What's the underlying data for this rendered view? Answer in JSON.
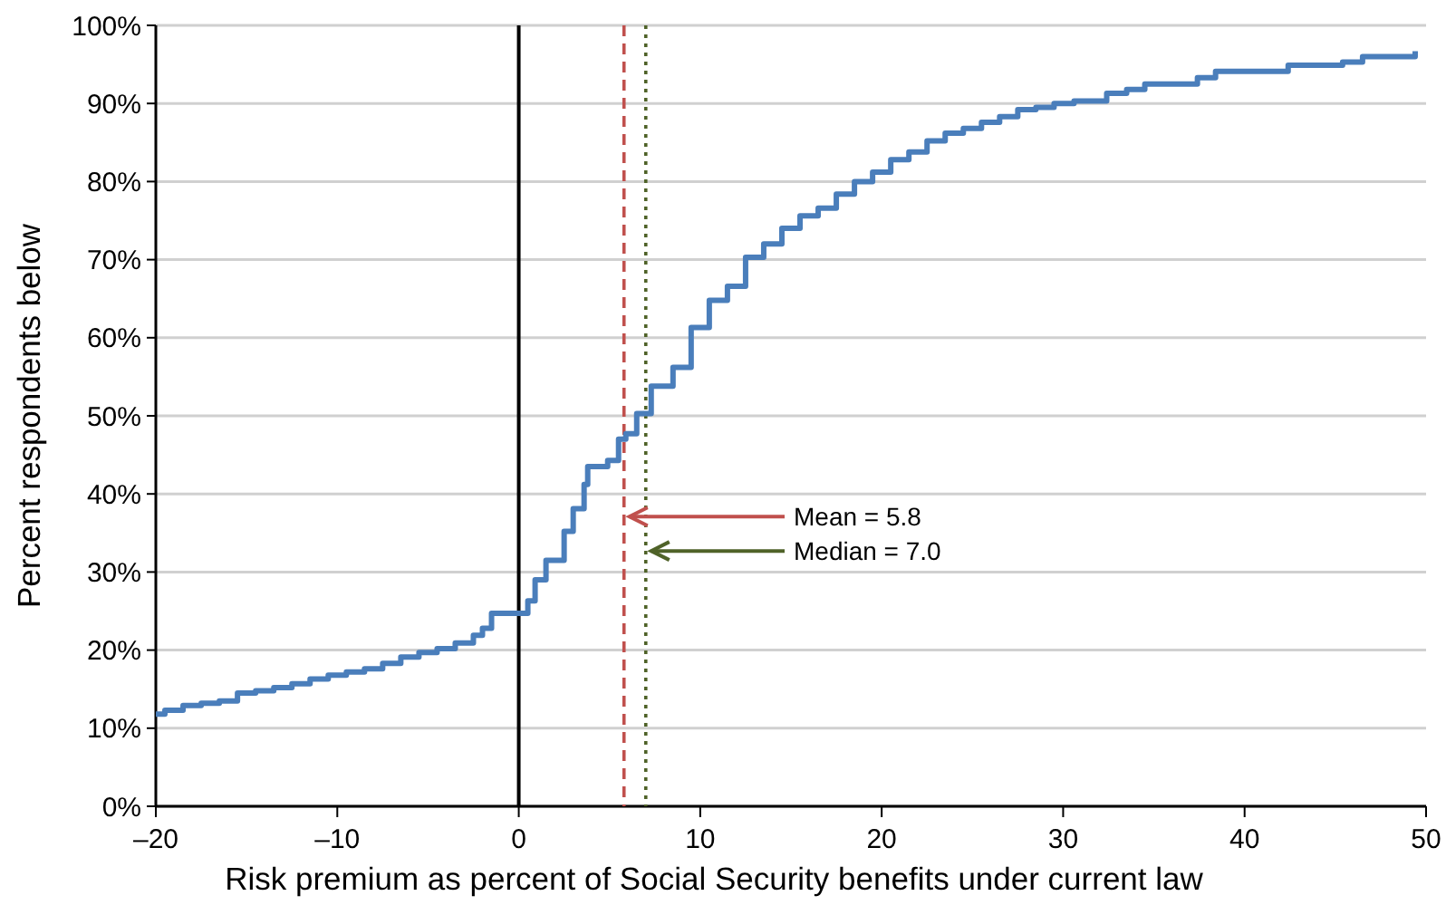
{
  "chart_data": {
    "type": "step",
    "xlabel": "Risk premium as percent of Social Security benefits under current law",
    "ylabel": "Percent respondents below",
    "x": [
      -20,
      -19.5,
      -18.5,
      -17.5,
      -16.5,
      -15.5,
      -14.5,
      -13.5,
      -12.5,
      -11.5,
      -10.5,
      -9.5,
      -8.5,
      -7.5,
      -6.5,
      -5.5,
      -4.5,
      -3.5,
      -2.5,
      -2,
      -1.5,
      0.5,
      0.9,
      1.5,
      2.5,
      3,
      3.6,
      3.8,
      4.9,
      5.5,
      5.9,
      6.5,
      7.3,
      8.5,
      9.5,
      10.5,
      11.5,
      12.5,
      13.5,
      14.5,
      15.5,
      16.5,
      17.5,
      18.5,
      19.5,
      20.5,
      21.5,
      22.5,
      23.5,
      24.5,
      25.5,
      26.5,
      27.5,
      28.5,
      29.5,
      30.6,
      32.4,
      33.5,
      34.5,
      37.4,
      38.4,
      42.4,
      45.4,
      46.5,
      49.4
    ],
    "series": [
      {
        "color": "#4a7ebb",
        "values": [
          11.8,
          12.3,
          12.9,
          13.2,
          13.5,
          14.5,
          14.8,
          15.2,
          15.7,
          16.3,
          16.8,
          17.2,
          17.6,
          18.3,
          19.1,
          19.7,
          20.2,
          20.9,
          21.9,
          22.8,
          24.7,
          26.3,
          29,
          31.5,
          35.2,
          38.1,
          41.2,
          43.5,
          44.3,
          47,
          47.7,
          50.3,
          53.8,
          56.2,
          61.3,
          64.8,
          66.6,
          70.3,
          72,
          74,
          75.6,
          76.6,
          78.4,
          80,
          81.2,
          82.8,
          83.8,
          85.2,
          86.2,
          86.8,
          87.6,
          88.3,
          89.2,
          89.5,
          90,
          90.3,
          91.3,
          91.8,
          92.5,
          93.3,
          94.1,
          94.9,
          95.3,
          96,
          96.7
        ]
      }
    ],
    "xlim": [
      -20,
      50
    ],
    "xticks": [
      {
        "value": -20,
        "label": "–20"
      },
      {
        "value": -10,
        "label": "–10"
      },
      0,
      10,
      20,
      30,
      40,
      50
    ],
    "ylim": [
      0,
      100
    ],
    "yticks": [
      {
        "value": 0,
        "label": "0%"
      },
      {
        "value": 10,
        "label": "10%"
      },
      {
        "value": 20,
        "label": "20%"
      },
      {
        "value": 30,
        "label": "30%"
      },
      {
        "value": 40,
        "label": "40%"
      },
      {
        "value": 50,
        "label": "50%"
      },
      {
        "value": 60,
        "label": "60%"
      },
      {
        "value": 70,
        "label": "70%"
      },
      {
        "value": 80,
        "label": "80%"
      },
      {
        "value": 90,
        "label": "90%"
      },
      {
        "value": 100,
        "label": "100%"
      }
    ],
    "grid": "y",
    "ref_lines": [
      {
        "axis": "x",
        "value": 0,
        "color": "#000000",
        "line_style": "solid"
      },
      {
        "axis": "x",
        "value": 5.8,
        "color": "#c0504d",
        "line_style": "dashed"
      },
      {
        "axis": "x",
        "value": 7.0,
        "color": "#4f6228",
        "line_style": "dotted"
      }
    ],
    "annotations": [
      {
        "text": "Mean = 5.8",
        "x": 5.8,
        "y": 37.1
      },
      {
        "text": "Median = 7.0",
        "x": 7.0,
        "y": 32.7
      }
    ]
  }
}
